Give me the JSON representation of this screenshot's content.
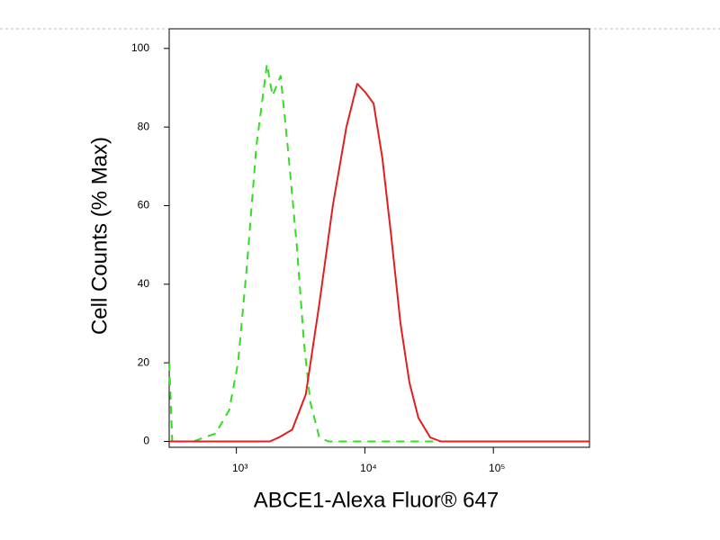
{
  "chart_data": {
    "type": "line",
    "ylabel": "Cell Counts (% Max)",
    "xlabel": "ABCE1-Alexa Fluor® 647",
    "xscale": "log",
    "xlim": [
      300,
      560000
    ],
    "xticks": [
      {
        "value": 1000,
        "label": "10³"
      },
      {
        "value": 10000,
        "label": "10⁴"
      },
      {
        "value": 100000,
        "label": "10⁵"
      }
    ],
    "ylim": [
      -1.5,
      105
    ],
    "yticks": [
      0,
      20,
      40,
      60,
      80,
      100
    ],
    "series": [
      {
        "color": "#33dd22",
        "dashed": true,
        "x": [
          300,
          317,
          460,
          690,
          880,
          1030,
          1210,
          1430,
          1730,
          1910,
          2210,
          2510,
          2950,
          3360,
          3760,
          4420,
          5200,
          560000
        ],
        "values": [
          20,
          0,
          0,
          2,
          8,
          20,
          45,
          75,
          96,
          88,
          93,
          75,
          50,
          25,
          10,
          1,
          0,
          0
        ]
      },
      {
        "color": "#e02020",
        "dashed": false,
        "x": [
          300,
          1820,
          2140,
          2720,
          3470,
          4420,
          5630,
          7180,
          8710,
          10000,
          11690,
          13700,
          16070,
          18940,
          22200,
          26100,
          32300,
          39000,
          560000
        ],
        "values": [
          0,
          0,
          1,
          3,
          12,
          35,
          60,
          80,
          91,
          89,
          86,
          72,
          52,
          30,
          15,
          6,
          1,
          0,
          0
        ]
      }
    ]
  }
}
